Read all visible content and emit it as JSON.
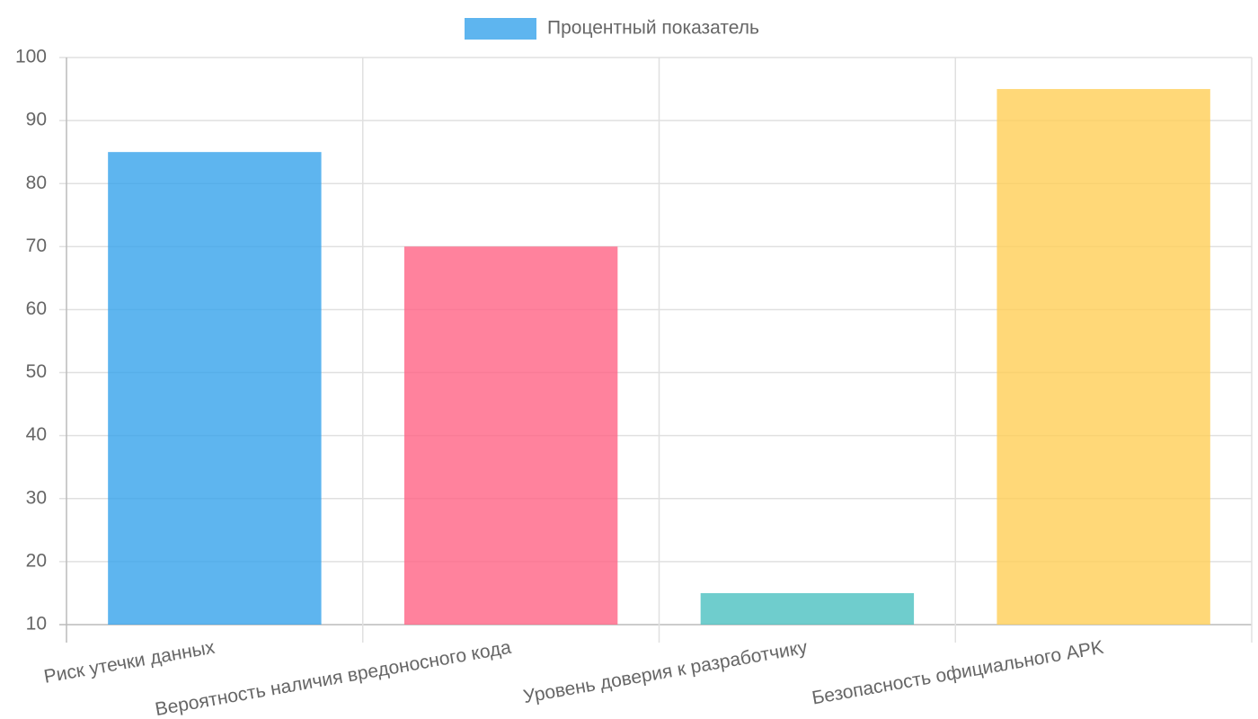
{
  "chart_data": {
    "type": "bar",
    "categories": [
      "Риск утечки данных",
      "Вероятность наличия вредоносного кода",
      "Уровень доверия к разработчику",
      "Безопасность официального APK"
    ],
    "series": [
      {
        "name": "Процентный показатель",
        "colors": [
          "rgba(54,162,235,0.8)",
          "rgba(255,99,132,0.8)",
          "rgba(75,192,192,0.8)",
          "rgba(255,206,86,0.8)"
        ],
        "values": [
          85,
          70,
          15,
          95
        ]
      }
    ],
    "ylim": [
      10,
      100
    ],
    "yticks": [
      10,
      20,
      30,
      40,
      50,
      60,
      70,
      80,
      90,
      100
    ],
    "grid": true,
    "legend": "top"
  }
}
